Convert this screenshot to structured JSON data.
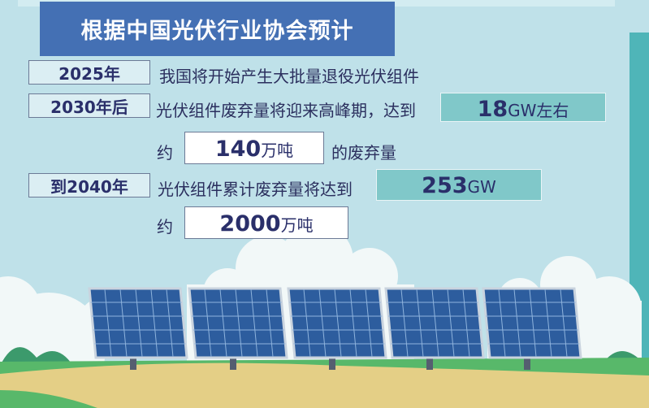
{
  "title": "根据中国光伏行业协会预计",
  "rows": {
    "r2025": {
      "label": "2025年",
      "text": "我国将开始产生大批量退役光伏组件"
    },
    "r2030": {
      "label": "2030年后",
      "text": "光伏组件废弃量将迎来高峰期，达到",
      "value": "18",
      "unit": "GW左右",
      "prefix": "约",
      "weight_value": "140",
      "weight_unit": "万吨",
      "suffix": "的废弃量"
    },
    "r2040": {
      "label": "到2040年",
      "text": "光伏组件累计废弃量将达到",
      "value": "253",
      "unit": "GW",
      "prefix": "约",
      "weight_value": "2000",
      "weight_unit": "万吨"
    }
  },
  "colors": {
    "background": "#bfe1e9",
    "title_bg": "#4470b4",
    "highlight": "#80c8c9",
    "text": "#2a2f6a"
  }
}
